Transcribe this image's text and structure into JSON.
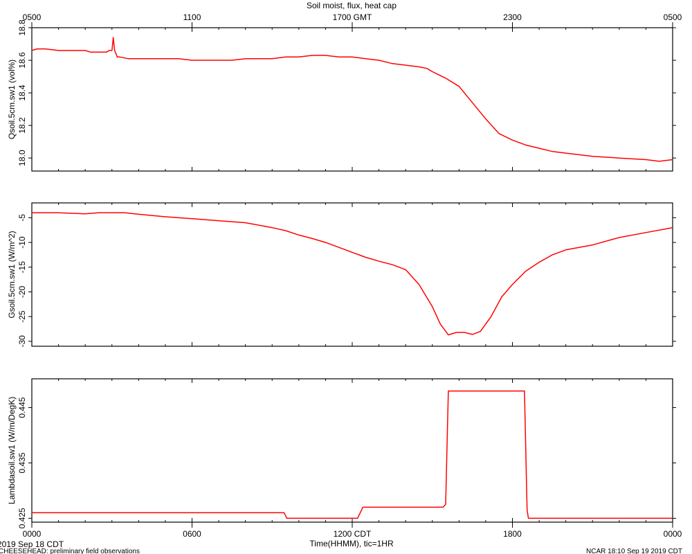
{
  "title": "Soil moist, flux, heat cap",
  "top_axis_ticks": [
    "0500",
    "1100",
    "1700 GMT",
    "2300",
    "0500"
  ],
  "bottom_axis_ticks": [
    "0000",
    "0600",
    "1200 CDT",
    "1800",
    "0000"
  ],
  "xlabel": "Time(HHMM), tic=1HR",
  "date_label": "2019 Sep 18 CDT",
  "footer_left": "CHEESEHEAD: preliminary field observations",
  "footer_right": "NCAR 18:10 Sep 19 2019 CDT",
  "colors": {
    "series": "#ff0000",
    "axis": "#000000"
  },
  "chart_data": [
    {
      "type": "line",
      "ylabel": "Qsoil.5cm.sw1 (vol%)",
      "ylim": [
        17.92,
        18.8
      ],
      "yticks": [
        18.0,
        18.2,
        18.4,
        18.6,
        18.8
      ],
      "ytick_labels": [
        "18.0",
        "18.2",
        "18.4",
        "18.6",
        "18.8"
      ],
      "xlim": [
        0,
        24
      ],
      "series": [
        {
          "x": [
            0,
            0.2,
            0.5,
            1.0,
            1.5,
            2.0,
            2.2,
            2.5,
            2.8,
            2.9,
            3.0,
            3.05,
            3.1,
            3.2,
            3.3,
            3.6,
            4.0,
            4.5,
            5.0,
            5.5,
            6.0,
            6.5,
            7.0,
            7.5,
            8.0,
            8.5,
            9.0,
            9.5,
            10.0,
            10.5,
            11.0,
            11.5,
            12.0,
            12.5,
            13.0,
            13.5,
            14.0,
            14.5,
            14.8,
            15.0,
            15.5,
            16.0,
            16.5,
            17.0,
            17.5,
            18.0,
            18.5,
            19.0,
            19.5,
            20.0,
            21.0,
            22.0,
            23.0,
            23.5,
            24.0
          ],
          "y": [
            18.66,
            18.67,
            18.67,
            18.66,
            18.66,
            18.66,
            18.65,
            18.65,
            18.65,
            18.66,
            18.66,
            18.74,
            18.66,
            18.62,
            18.62,
            18.61,
            18.61,
            18.61,
            18.61,
            18.61,
            18.6,
            18.6,
            18.6,
            18.6,
            18.61,
            18.61,
            18.61,
            18.62,
            18.62,
            18.63,
            18.63,
            18.62,
            18.62,
            18.61,
            18.6,
            18.58,
            18.57,
            18.56,
            18.55,
            18.53,
            18.49,
            18.44,
            18.34,
            18.24,
            18.15,
            18.11,
            18.08,
            18.06,
            18.04,
            18.03,
            18.01,
            18.0,
            17.99,
            17.98,
            17.99
          ]
        }
      ]
    },
    {
      "type": "line",
      "ylabel": "Gsoil.5cm.sw1 (W/m^2)",
      "ylim": [
        -31,
        -2
      ],
      "yticks": [
        -5,
        -10,
        -15,
        -20,
        -25,
        -30
      ],
      "ytick_labels": [
        "-5",
        "-10",
        "-15",
        "-20",
        "-25",
        "-30"
      ],
      "xlim": [
        0,
        24
      ],
      "series": [
        {
          "x": [
            0,
            1.0,
            2.0,
            2.5,
            3.0,
            3.5,
            4.0,
            5.0,
            6.0,
            7.0,
            8.0,
            9.0,
            9.5,
            10.0,
            10.5,
            11.0,
            11.5,
            12.0,
            12.5,
            13.0,
            13.5,
            14.0,
            14.5,
            15.0,
            15.3,
            15.6,
            15.9,
            16.2,
            16.5,
            16.8,
            17.2,
            17.6,
            18.0,
            18.5,
            19.0,
            19.5,
            20.0,
            21.0,
            22.0,
            23.0,
            24.0
          ],
          "y": [
            -4.0,
            -4.0,
            -4.2,
            -4.0,
            -4.0,
            -4.0,
            -4.3,
            -4.8,
            -5.2,
            -5.6,
            -6.0,
            -7.0,
            -7.6,
            -8.5,
            -9.2,
            -10.0,
            -11.0,
            -12.0,
            -13.0,
            -13.8,
            -14.5,
            -15.5,
            -18.5,
            -23.0,
            -26.5,
            -28.7,
            -28.2,
            -28.2,
            -28.6,
            -28.0,
            -25.0,
            -21.0,
            -18.5,
            -15.8,
            -14.0,
            -12.5,
            -11.5,
            -10.5,
            -9.0,
            -8.0,
            -7.0
          ]
        }
      ]
    },
    {
      "type": "line",
      "ylabel": "Lambdasoil.sw1 (W/m/DegK)",
      "ylim": [
        0.4243,
        0.4502
      ],
      "yticks": [
        0.425,
        0.435,
        0.445
      ],
      "ytick_labels": [
        "0.425",
        "0.435",
        "0.445"
      ],
      "xlim": [
        0,
        24
      ],
      "series": [
        {
          "x": [
            0,
            9.45,
            9.55,
            12.0,
            12.2,
            12.4,
            15.4,
            15.5,
            15.6,
            18.45,
            18.55,
            18.6,
            24.0
          ],
          "y": [
            0.426,
            0.426,
            0.425,
            0.425,
            0.425,
            0.427,
            0.427,
            0.4275,
            0.448,
            0.448,
            0.4265,
            0.425,
            0.425
          ]
        }
      ]
    }
  ]
}
